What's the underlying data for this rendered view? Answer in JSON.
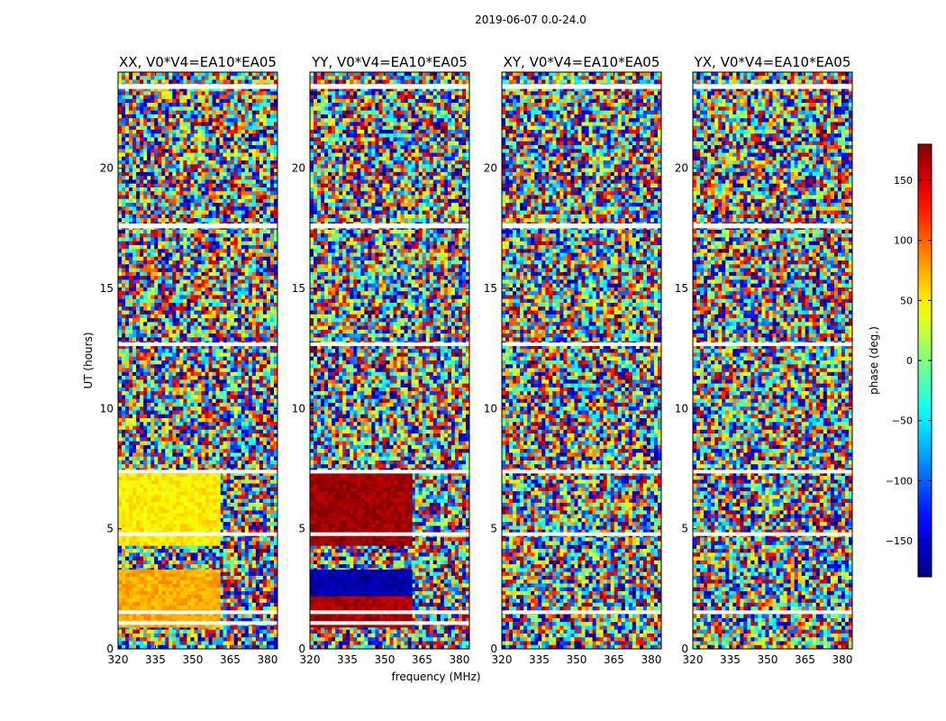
{
  "chart_data": {
    "type": "heatmap",
    "suptitle": "2019-06-07 0.0-24.0",
    "xlabel": "frequency (MHz)",
    "ylabel": "UT (hours)",
    "xlim": [
      320,
      384
    ],
    "ylim": [
      0,
      24
    ],
    "x_ticks": [
      320,
      335,
      350,
      365,
      380
    ],
    "x_tick_labels": [
      "320",
      "335",
      "350",
      "365",
      "380"
    ],
    "y_ticks": [
      0,
      5,
      10,
      15,
      20
    ],
    "y_tick_labels": [
      "0",
      "5",
      "10",
      "15",
      "20"
    ],
    "colormap": "jet",
    "colorbar": {
      "label": "phase (deg.)",
      "range": [
        -180,
        180
      ],
      "ticks": [
        -150,
        -100,
        -50,
        0,
        50,
        100,
        150
      ],
      "tick_labels": [
        "−150",
        "−100",
        "−50",
        "0",
        "50",
        "100",
        "150"
      ]
    },
    "panels": [
      {
        "title": "XX, V0*V4=EA10*EA05",
        "polarization": "XX",
        "flagged_bands": [
          {
            "t0": 1.0,
            "t1": 1.15
          },
          {
            "t0": 1.45,
            "t1": 1.6
          },
          {
            "t0": 4.7,
            "t1": 4.85
          },
          {
            "t0": 7.3,
            "t1": 7.45
          },
          {
            "t0": 12.6,
            "t1": 12.75
          },
          {
            "t0": 17.5,
            "t1": 17.7
          },
          {
            "t0": 23.3,
            "t1": 23.5
          }
        ],
        "coherent_blocks": [
          {
            "t0": 0.9,
            "t1": 3.3,
            "f0": 320,
            "f1": 361,
            "phase": 75
          },
          {
            "t0": 4.3,
            "t1": 7.3,
            "f0": 320,
            "f1": 361,
            "phase": 50
          }
        ]
      },
      {
        "title": "YY, V0*V4=EA10*EA05",
        "polarization": "YY",
        "flagged_bands": [
          {
            "t0": 1.0,
            "t1": 1.15
          },
          {
            "t0": 1.45,
            "t1": 1.6
          },
          {
            "t0": 4.7,
            "t1": 4.85
          },
          {
            "t0": 7.3,
            "t1": 7.45
          },
          {
            "t0": 12.6,
            "t1": 12.75
          },
          {
            "t0": 17.5,
            "t1": 17.7
          },
          {
            "t0": 23.3,
            "t1": 23.5
          }
        ],
        "coherent_blocks": [
          {
            "t0": 0.9,
            "t1": 2.2,
            "f0": 320,
            "f1": 361,
            "phase": 165
          },
          {
            "t0": 2.2,
            "t1": 3.3,
            "f0": 320,
            "f1": 361,
            "phase": -165
          },
          {
            "t0": 4.3,
            "t1": 7.3,
            "f0": 320,
            "f1": 361,
            "phase": 170
          }
        ]
      },
      {
        "title": "XY, V0*V4=EA10*EA05",
        "polarization": "XY",
        "flagged_bands": [
          {
            "t0": 1.45,
            "t1": 1.6
          },
          {
            "t0": 4.7,
            "t1": 4.85
          },
          {
            "t0": 7.3,
            "t1": 7.45
          },
          {
            "t0": 12.6,
            "t1": 12.75
          },
          {
            "t0": 17.5,
            "t1": 17.7
          },
          {
            "t0": 23.3,
            "t1": 23.5
          }
        ],
        "coherent_blocks": []
      },
      {
        "title": "YX, V0*V4=EA10*EA05",
        "polarization": "YX",
        "flagged_bands": [
          {
            "t0": 1.45,
            "t1": 1.6
          },
          {
            "t0": 4.7,
            "t1": 4.85
          },
          {
            "t0": 7.3,
            "t1": 7.45
          },
          {
            "t0": 12.6,
            "t1": 12.75
          },
          {
            "t0": 17.5,
            "t1": 17.7
          },
          {
            "t0": 23.3,
            "t1": 23.5
          }
        ],
        "coherent_blocks": []
      }
    ]
  }
}
